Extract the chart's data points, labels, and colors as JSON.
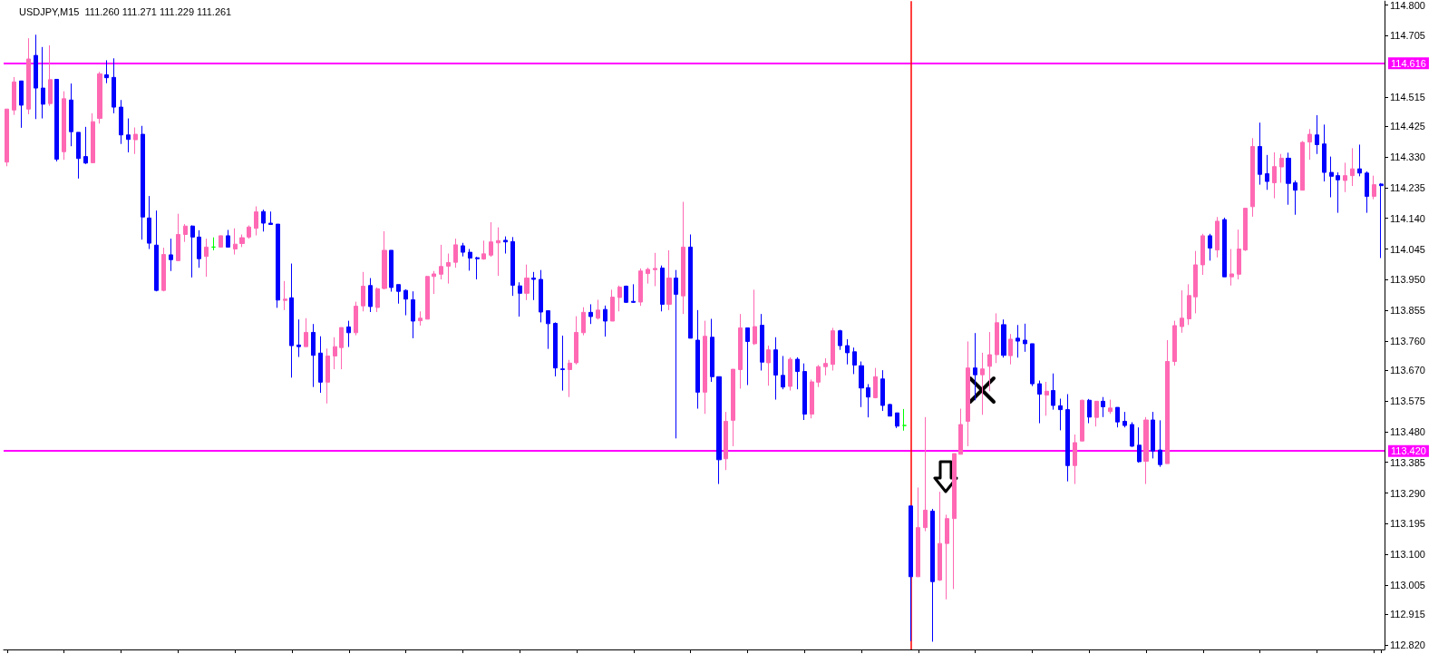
{
  "chart_data": {
    "type": "candlestick",
    "title": "USDJPY,M15  111.260 111.271 111.229 111.261",
    "categories": [
      null,
      null,
      null,
      null,
      null,
      null,
      null,
      null,
      null,
      null,
      null,
      null,
      null,
      null,
      null,
      null,
      null,
      null,
      null,
      null,
      null,
      null,
      null,
      null,
      null,
      null,
      null,
      null,
      null,
      null,
      null,
      null,
      null,
      null,
      null,
      null,
      null,
      null,
      null,
      null,
      null,
      null,
      null,
      null,
      null,
      null,
      null,
      null,
      null,
      null,
      null,
      null,
      null,
      null,
      null,
      null,
      null,
      null,
      null,
      null,
      null,
      null,
      null,
      null,
      null,
      null,
      null,
      null,
      null,
      null,
      null,
      null,
      null,
      null,
      null,
      null,
      null,
      null,
      null,
      null,
      null,
      null,
      null,
      null,
      null,
      null,
      null,
      null,
      null,
      null,
      null,
      null,
      null,
      null,
      null,
      null,
      null,
      null,
      null,
      null,
      null,
      null,
      null,
      null,
      null,
      null,
      null,
      null,
      null,
      null,
      null,
      null,
      null,
      null,
      null,
      null,
      null,
      null,
      null,
      null,
      null,
      null,
      null,
      null,
      null,
      null,
      null,
      null,
      null,
      null,
      null,
      null,
      null,
      null,
      null,
      null,
      null,
      null,
      null,
      null,
      null,
      null,
      null,
      null,
      null,
      null,
      null,
      null,
      null,
      null,
      null,
      null,
      null,
      null,
      null,
      null,
      null,
      null,
      null,
      null,
      null,
      null,
      null,
      null,
      null,
      null,
      null,
      null,
      null,
      null,
      null,
      null,
      null,
      null,
      null,
      null,
      null,
      null,
      null,
      null,
      null,
      null,
      null,
      null,
      null,
      null,
      null,
      null,
      null,
      null,
      null,
      null,
      null,
      null
    ],
    "ohlc": [
      [
        114.314,
        114.478,
        114.301,
        114.478
      ],
      [
        114.475,
        114.577,
        114.46,
        114.562
      ],
      [
        114.565,
        114.565,
        114.42,
        114.49
      ],
      [
        114.478,
        114.697,
        114.462,
        114.633
      ],
      [
        114.644,
        114.708,
        114.447,
        114.543
      ],
      [
        114.543,
        114.67,
        114.449,
        114.493
      ],
      [
        114.495,
        114.675,
        114.488,
        114.569
      ],
      [
        114.57,
        114.57,
        114.316,
        114.323
      ],
      [
        114.346,
        114.533,
        114.321,
        114.51
      ],
      [
        114.506,
        114.557,
        114.363,
        114.408
      ],
      [
        114.406,
        114.406,
        114.263,
        114.325
      ],
      [
        114.331,
        114.423,
        114.308,
        114.311
      ],
      [
        114.312,
        114.465,
        114.311,
        114.439
      ],
      [
        114.449,
        114.593,
        114.433,
        114.587
      ],
      [
        114.584,
        114.629,
        114.558,
        114.575
      ],
      [
        114.576,
        114.635,
        114.465,
        114.484
      ],
      [
        114.484,
        114.506,
        114.37,
        114.398
      ],
      [
        114.398,
        114.449,
        114.344,
        114.384
      ],
      [
        114.383,
        114.421,
        114.339,
        114.4
      ],
      [
        114.4,
        114.426,
        114.074,
        114.144
      ],
      [
        114.141,
        114.209,
        114.045,
        114.063
      ],
      [
        114.057,
        114.164,
        113.914,
        113.917
      ],
      [
        113.917,
        114.049,
        113.914,
        114.028
      ],
      [
        114.027,
        114.077,
        113.977,
        114.012
      ],
      [
        114.009,
        114.154,
        114.009,
        114.09
      ],
      [
        114.09,
        114.122,
        114.067,
        114.116
      ],
      [
        114.116,
        114.118,
        113.957,
        114.082
      ],
      [
        114.082,
        114.103,
        113.987,
        114.015
      ],
      [
        114.022,
        114.077,
        113.959,
        114.051
      ],
      [
        114.051,
        114.081,
        114.041,
        114.051
      ],
      [
        114.051,
        114.086,
        114.051,
        114.086
      ],
      [
        114.086,
        114.104,
        114.051,
        114.051
      ],
      [
        114.045,
        114.109,
        114.028,
        114.06
      ],
      [
        114.062,
        114.09,
        114.051,
        114.08
      ],
      [
        114.082,
        114.118,
        114.077,
        114.113
      ],
      [
        114.109,
        114.177,
        114.087,
        114.16
      ],
      [
        114.161,
        114.167,
        114.099,
        114.125
      ],
      [
        114.125,
        114.161,
        114.121,
        114.121
      ],
      [
        114.122,
        114.122,
        113.863,
        113.887
      ],
      [
        113.886,
        113.946,
        113.856,
        113.89
      ],
      [
        113.894,
        114.0,
        113.647,
        113.746
      ],
      [
        113.748,
        113.827,
        113.711,
        113.743
      ],
      [
        113.743,
        113.831,
        113.743,
        113.787
      ],
      [
        113.787,
        113.813,
        113.618,
        113.716
      ],
      [
        113.723,
        113.775,
        113.6,
        113.633
      ],
      [
        113.633,
        113.737,
        113.567,
        113.714
      ],
      [
        113.714,
        113.772,
        113.673,
        113.743
      ],
      [
        113.74,
        113.802,
        113.673,
        113.802
      ],
      [
        113.804,
        113.823,
        113.742,
        113.786
      ],
      [
        113.786,
        113.882,
        113.778,
        113.868
      ],
      [
        113.869,
        113.974,
        113.852,
        113.93
      ],
      [
        113.932,
        113.955,
        113.85,
        113.867
      ],
      [
        113.864,
        113.926,
        113.85,
        113.922
      ],
      [
        113.923,
        114.1,
        113.92,
        114.041
      ],
      [
        114.041,
        114.041,
        113.913,
        113.926
      ],
      [
        113.935,
        113.935,
        113.876,
        113.914
      ],
      [
        113.917,
        113.92,
        113.84,
        113.89
      ],
      [
        113.888,
        113.914,
        113.769,
        113.822
      ],
      [
        113.823,
        113.852,
        113.808,
        113.831
      ],
      [
        113.828,
        113.962,
        113.828,
        113.96
      ],
      [
        113.96,
        113.977,
        113.906,
        113.968
      ],
      [
        113.967,
        114.058,
        113.951,
        113.991
      ],
      [
        113.992,
        114.031,
        113.938,
        114.003
      ],
      [
        114.004,
        114.077,
        113.987,
        114.058
      ],
      [
        114.055,
        114.064,
        114.022,
        114.035
      ],
      [
        114.035,
        114.045,
        113.978,
        114.017
      ],
      [
        114.018,
        114.021,
        113.951,
        114.015
      ],
      [
        114.014,
        114.071,
        114.012,
        114.03
      ],
      [
        114.026,
        114.128,
        114.021,
        114.067
      ],
      [
        114.064,
        114.112,
        113.962,
        114.071
      ],
      [
        114.072,
        114.084,
        114.031,
        114.067
      ],
      [
        114.068,
        114.082,
        113.9,
        113.933
      ],
      [
        113.931,
        113.942,
        113.836,
        113.908
      ],
      [
        113.908,
        113.997,
        113.887,
        113.955
      ],
      [
        113.955,
        113.974,
        113.887,
        113.951
      ],
      [
        113.951,
        113.98,
        113.818,
        113.85
      ],
      [
        113.854,
        113.854,
        113.736,
        113.814
      ],
      [
        113.815,
        113.818,
        113.651,
        113.677
      ],
      [
        113.674,
        113.777,
        113.607,
        113.672
      ],
      [
        113.672,
        113.702,
        113.587,
        113.692
      ],
      [
        113.693,
        113.837,
        113.688,
        113.787
      ],
      [
        113.786,
        113.865,
        113.778,
        113.849
      ],
      [
        113.849,
        113.874,
        113.813,
        113.836
      ],
      [
        113.831,
        113.888,
        113.827,
        113.856
      ],
      [
        113.858,
        113.87,
        113.774,
        113.822
      ],
      [
        113.822,
        113.919,
        113.822,
        113.896
      ],
      [
        113.895,
        113.932,
        113.852,
        113.927
      ],
      [
        113.93,
        113.932,
        113.878,
        113.88
      ],
      [
        113.883,
        113.936,
        113.878,
        113.88
      ],
      [
        113.881,
        113.985,
        113.869,
        113.977
      ],
      [
        113.969,
        113.987,
        113.938,
        113.982
      ],
      [
        113.981,
        114.033,
        113.93,
        113.985
      ],
      [
        113.986,
        113.994,
        113.852,
        113.874
      ],
      [
        113.874,
        114.041,
        113.856,
        113.955
      ],
      [
        113.955,
        113.98,
        113.459,
        113.905
      ],
      [
        113.9,
        114.191,
        113.844,
        114.051
      ],
      [
        114.051,
        114.09,
        113.769,
        113.769
      ],
      [
        113.763,
        113.856,
        113.551,
        113.602
      ],
      [
        113.602,
        113.823,
        113.535,
        113.775
      ],
      [
        113.772,
        113.829,
        113.634,
        113.65
      ],
      [
        113.65,
        113.65,
        113.318,
        113.393
      ],
      [
        113.396,
        113.541,
        113.361,
        113.512
      ],
      [
        113.515,
        113.673,
        113.435,
        113.673
      ],
      [
        113.672,
        113.844,
        113.613,
        113.801
      ],
      [
        113.801,
        113.801,
        113.624,
        113.759
      ],
      [
        113.752,
        113.919,
        113.748,
        113.805
      ],
      [
        113.809,
        113.844,
        113.669,
        113.695
      ],
      [
        113.693,
        113.746,
        113.622,
        113.733
      ],
      [
        113.733,
        113.772,
        113.579,
        113.655
      ],
      [
        113.654,
        113.714,
        113.611,
        113.618
      ],
      [
        113.62,
        113.71,
        113.607,
        113.704
      ],
      [
        113.704,
        113.71,
        113.611,
        113.666
      ],
      [
        113.666,
        113.691,
        113.516,
        113.534
      ],
      [
        113.534,
        113.641,
        113.521,
        113.634
      ],
      [
        113.633,
        113.686,
        113.618,
        113.681
      ],
      [
        113.681,
        113.707,
        113.654,
        113.691
      ],
      [
        113.688,
        113.801,
        113.669,
        113.792
      ],
      [
        113.792,
        113.795,
        113.733,
        113.746
      ],
      [
        113.746,
        113.766,
        113.688,
        113.724
      ],
      [
        113.727,
        113.74,
        113.658,
        113.686
      ],
      [
        113.684,
        113.697,
        113.556,
        113.615
      ],
      [
        113.616,
        113.627,
        113.524,
        113.587
      ],
      [
        113.585,
        113.677,
        113.583,
        113.65
      ],
      [
        113.643,
        113.67,
        113.544,
        113.561
      ],
      [
        113.564,
        113.566,
        113.528,
        113.528
      ],
      [
        113.538,
        113.538,
        113.491,
        113.497
      ],
      [
        113.499,
        113.55,
        113.483,
        113.499
      ],
      [
        113.25,
        113.25,
        112.832,
        113.031
      ],
      [
        113.031,
        113.307,
        113.031,
        113.183
      ],
      [
        113.183,
        113.525,
        113.172,
        113.237
      ],
      [
        113.234,
        113.241,
        112.83,
        113.016
      ],
      [
        113.021,
        113.294,
        113.018,
        113.134
      ],
      [
        113.134,
        113.223,
        112.961,
        113.211
      ],
      [
        113.211,
        113.412,
        112.993,
        113.412
      ],
      [
        113.41,
        113.551,
        113.41,
        113.502
      ],
      [
        113.512,
        113.759,
        113.435,
        113.677
      ],
      [
        113.677,
        113.785,
        113.577,
        113.656
      ],
      [
        113.656,
        113.724,
        113.532,
        113.674
      ],
      [
        113.682,
        113.788,
        113.605,
        113.718
      ],
      [
        113.718,
        113.846,
        113.692,
        113.817
      ],
      [
        113.811,
        113.827,
        113.709,
        113.716
      ],
      [
        113.715,
        113.782,
        113.688,
        113.766
      ],
      [
        113.769,
        113.81,
        113.709,
        113.76
      ],
      [
        113.763,
        113.814,
        113.727,
        113.752
      ],
      [
        113.752,
        113.752,
        113.621,
        113.628
      ],
      [
        113.628,
        113.638,
        113.506,
        113.596
      ],
      [
        113.593,
        113.634,
        113.529,
        113.605
      ],
      [
        113.607,
        113.66,
        113.548,
        113.561
      ],
      [
        113.56,
        113.582,
        113.484,
        113.548
      ],
      [
        113.548,
        113.596,
        113.326,
        113.375
      ],
      [
        113.375,
        113.471,
        113.318,
        113.446
      ],
      [
        113.451,
        113.579,
        113.451,
        113.577
      ],
      [
        113.577,
        113.581,
        113.506,
        113.525
      ],
      [
        113.524,
        113.574,
        113.496,
        113.574
      ],
      [
        113.574,
        113.587,
        113.525,
        113.557
      ],
      [
        113.542,
        113.579,
        113.535,
        113.553
      ],
      [
        113.555,
        113.555,
        113.493,
        113.51
      ],
      [
        113.512,
        113.541,
        113.493,
        113.499
      ],
      [
        113.502,
        113.509,
        113.433,
        113.435
      ],
      [
        113.438,
        113.493,
        113.384,
        113.387
      ],
      [
        113.388,
        113.525,
        113.318,
        113.516
      ],
      [
        113.516,
        113.541,
        113.397,
        113.42
      ],
      [
        113.423,
        113.515,
        113.371,
        113.378
      ],
      [
        113.381,
        113.763,
        113.381,
        113.697
      ],
      [
        113.697,
        113.823,
        113.684,
        113.808
      ],
      [
        113.805,
        113.917,
        113.786,
        113.831
      ],
      [
        113.829,
        113.936,
        113.81,
        113.901
      ],
      [
        113.897,
        114.039,
        113.846,
        113.996
      ],
      [
        113.996,
        114.092,
        113.965,
        114.086
      ],
      [
        114.086,
        114.092,
        114.009,
        114.048
      ],
      [
        114.042,
        114.144,
        114.019,
        114.131
      ],
      [
        114.136,
        114.142,
        113.959,
        113.959
      ],
      [
        113.959,
        114.045,
        113.932,
        113.968
      ],
      [
        113.967,
        114.105,
        113.951,
        114.045
      ],
      [
        114.042,
        114.171,
        114.039,
        114.171
      ],
      [
        114.176,
        114.388,
        114.145,
        114.362
      ],
      [
        114.362,
        114.436,
        114.244,
        114.276
      ],
      [
        114.278,
        114.336,
        114.228,
        114.254
      ],
      [
        114.25,
        114.344,
        114.202,
        114.3
      ],
      [
        114.299,
        114.339,
        114.25,
        114.326
      ],
      [
        114.326,
        114.343,
        114.182,
        114.248
      ],
      [
        114.25,
        114.257,
        114.151,
        114.227
      ],
      [
        114.227,
        114.379,
        114.227,
        114.375
      ],
      [
        114.376,
        114.416,
        114.321,
        114.4
      ],
      [
        114.398,
        114.459,
        114.339,
        114.368
      ],
      [
        114.37,
        114.43,
        114.254,
        114.282
      ],
      [
        114.282,
        114.331,
        114.205,
        114.27
      ],
      [
        114.272,
        114.282,
        114.157,
        114.259
      ],
      [
        114.257,
        114.312,
        114.221,
        114.272
      ],
      [
        114.272,
        114.357,
        114.24,
        114.293
      ],
      [
        114.293,
        114.368,
        114.27,
        114.28
      ],
      [
        114.28,
        114.285,
        114.157,
        114.208
      ],
      [
        114.208,
        114.272,
        114.199,
        114.244
      ],
      [
        114.246,
        114.249,
        114.017,
        114.241
      ]
    ],
    "colors": [
      "#ff69b4",
      "#ff69b4",
      "#0000ff",
      "#ff69b4",
      "#0000ff",
      "#0000ff",
      "#ff69b4",
      "#0000ff",
      "#ff69b4",
      "#0000ff",
      "#0000ff",
      "#0000ff",
      "#ff69b4",
      "#ff69b4",
      "#0000ff",
      "#0000ff",
      "#0000ff",
      "#0000ff",
      "#ff69b4",
      "#0000ff",
      "#0000ff",
      "#0000ff",
      "#ff69b4",
      "#0000ff",
      "#ff69b4",
      "#ff69b4",
      "#0000ff",
      "#0000ff",
      "#ff69b4",
      "#00ff00",
      "#ff69b4",
      "#0000ff",
      "#ff69b4",
      "#ff69b4",
      "#ff69b4",
      "#ff69b4",
      "#0000ff",
      "#0000ff",
      "#0000ff",
      "#ff69b4",
      "#0000ff",
      "#0000ff",
      "#ff69b4",
      "#0000ff",
      "#0000ff",
      "#ff69b4",
      "#ff69b4",
      "#ff69b4",
      "#0000ff",
      "#ff69b4",
      "#ff69b4",
      "#0000ff",
      "#ff69b4",
      "#ff69b4",
      "#0000ff",
      "#0000ff",
      "#0000ff",
      "#0000ff",
      "#ff69b4",
      "#ff69b4",
      "#ff69b4",
      "#ff69b4",
      "#ff69b4",
      "#ff69b4",
      "#0000ff",
      "#0000ff",
      "#0000ff",
      "#ff69b4",
      "#ff69b4",
      "#ff69b4",
      "#0000ff",
      "#0000ff",
      "#0000ff",
      "#ff69b4",
      "#0000ff",
      "#0000ff",
      "#0000ff",
      "#0000ff",
      "#0000ff",
      "#ff69b4",
      "#ff69b4",
      "#ff69b4",
      "#0000ff",
      "#ff69b4",
      "#0000ff",
      "#ff69b4",
      "#ff69b4",
      "#0000ff",
      "#0000ff",
      "#ff69b4",
      "#ff69b4",
      "#ff69b4",
      "#0000ff",
      "#ff69b4",
      "#0000ff",
      "#ff69b4",
      "#0000ff",
      "#0000ff",
      "#ff69b4",
      "#0000ff",
      "#0000ff",
      "#ff69b4",
      "#ff69b4",
      "#ff69b4",
      "#0000ff",
      "#ff69b4",
      "#0000ff",
      "#ff69b4",
      "#0000ff",
      "#0000ff",
      "#ff69b4",
      "#0000ff",
      "#0000ff",
      "#ff69b4",
      "#ff69b4",
      "#ff69b4",
      "#ff69b4",
      "#0000ff",
      "#0000ff",
      "#0000ff",
      "#0000ff",
      "#0000ff",
      "#ff69b4",
      "#0000ff",
      "#0000ff",
      "#0000ff",
      "#00ff00",
      "#0000ff",
      "#ff69b4",
      "#ff69b4",
      "#0000ff",
      "#ff69b4",
      "#ff69b4",
      "#ff69b4",
      "#ff69b4",
      "#ff69b4",
      "#0000ff",
      "#ff69b4",
      "#ff69b4",
      "#ff69b4",
      "#0000ff",
      "#ff69b4",
      "#0000ff",
      "#0000ff",
      "#0000ff",
      "#0000ff",
      "#ff69b4",
      "#0000ff",
      "#0000ff",
      "#0000ff",
      "#ff69b4",
      "#ff69b4",
      "#0000ff",
      "#ff69b4",
      "#0000ff",
      "#ff69b4",
      "#0000ff",
      "#0000ff",
      "#0000ff",
      "#0000ff",
      "#ff69b4",
      "#0000ff",
      "#0000ff",
      "#ff69b4",
      "#ff69b4",
      "#ff69b4",
      "#ff69b4",
      "#ff69b4",
      "#ff69b4",
      "#0000ff",
      "#ff69b4",
      "#0000ff",
      "#ff69b4",
      "#ff69b4",
      "#ff69b4",
      "#ff69b4",
      "#0000ff",
      "#0000ff",
      "#ff69b4",
      "#ff69b4",
      "#0000ff",
      "#0000ff",
      "#ff69b4",
      "#ff69b4",
      "#0000ff",
      "#0000ff",
      "#0000ff",
      "#0000ff",
      "#ff69b4",
      "#ff69b4",
      "#0000ff",
      "#0000ff",
      "#ff69b4",
      "#0000ff"
    ],
    "ylim": [
      112.806,
      114.812
    ],
    "yticks": [
      {
        "value": 112.82,
        "label": "112.820"
      },
      112.915,
      113.005,
      {
        "value": 113.1,
        "label": "113.100"
      },
      113.195,
      {
        "value": 113.29,
        "label": "113.290"
      },
      113.385,
      {
        "value": 113.48,
        "label": "113.480"
      },
      113.575,
      {
        "value": 113.67,
        "label": "113.670"
      },
      {
        "value": 113.76,
        "label": "113.760"
      },
      113.855,
      {
        "value": 113.95,
        "label": "113.950"
      },
      114.045,
      {
        "value": 114.14,
        "label": "114.140"
      },
      114.235,
      {
        "value": 114.33,
        "label": "114.330"
      },
      114.425,
      114.515,
      114.705,
      {
        "value": 114.8,
        "label": "114.800"
      }
    ],
    "tick_labels": "y",
    "grid": false,
    "ref_lines": [
      {
        "axis": "y",
        "value": 114.616,
        "label": "114.616",
        "color": "#ff00ff"
      },
      {
        "axis": "y",
        "value": 113.42,
        "label": "113.420",
        "color": "#ff00ff"
      }
    ]
  }
}
